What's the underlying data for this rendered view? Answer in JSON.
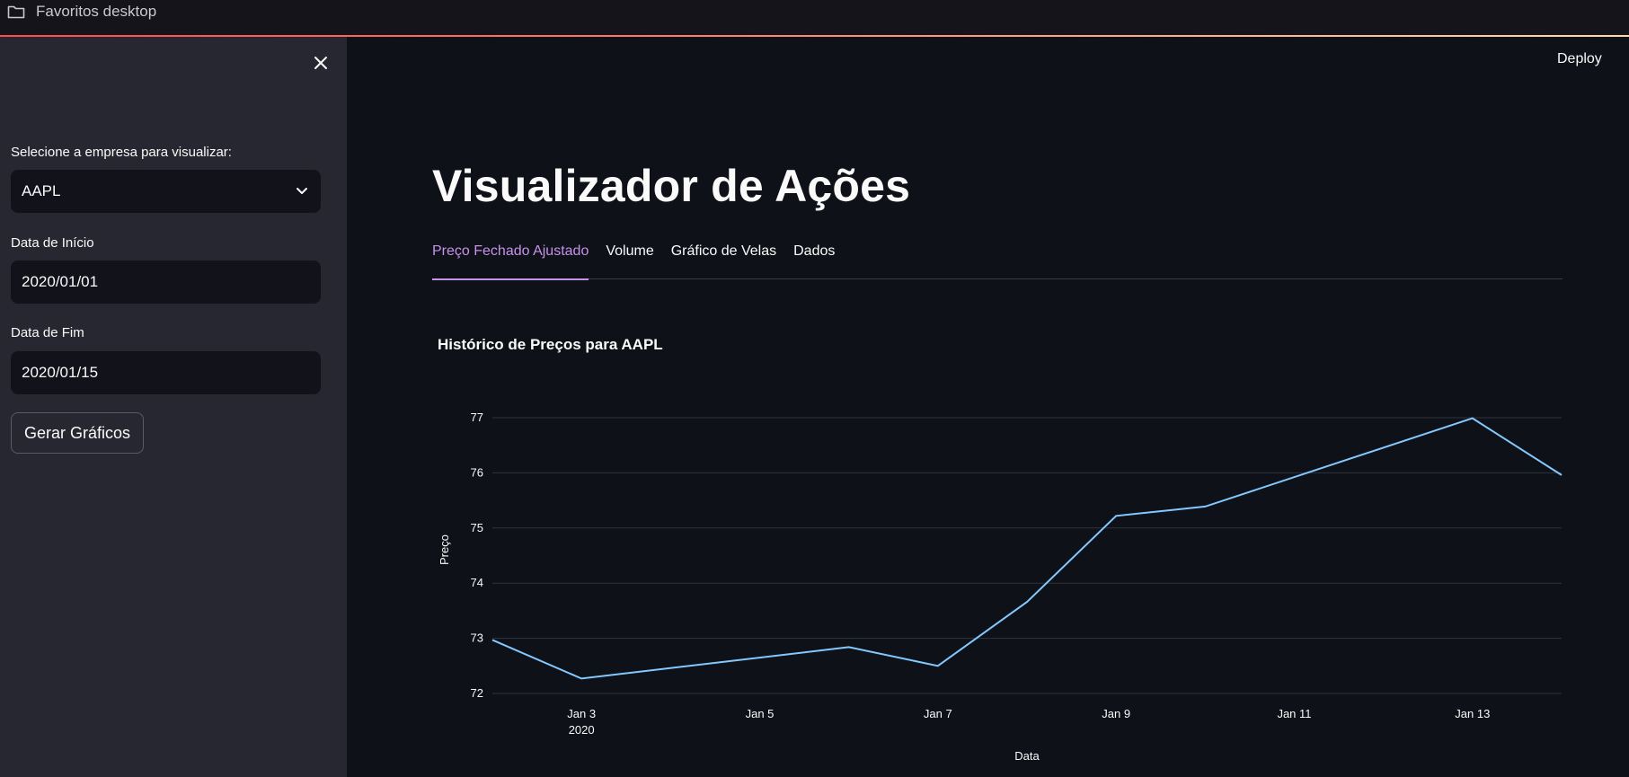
{
  "bookmarks": {
    "folder_label": "Favoritos desktop",
    "folder_icon": "folder-icon"
  },
  "sidebar": {
    "close_icon": "close-icon",
    "company_label": "Selecione a empresa para visualizar:",
    "company_value": "AAPL",
    "start_label": "Data de Início",
    "start_value": "2020/01/01",
    "end_label": "Data de Fim",
    "end_value": "2020/01/15",
    "generate_label": "Gerar Gráficos"
  },
  "header": {
    "deploy_label": "Deploy"
  },
  "main": {
    "title": "Visualizador de Ações",
    "tabs": [
      {
        "label": "Preço Fechado Ajustado",
        "active": true
      },
      {
        "label": "Volume",
        "active": false
      },
      {
        "label": "Gráfico de Velas",
        "active": false
      },
      {
        "label": "Dados",
        "active": false
      }
    ]
  },
  "colors": {
    "accent": "#c792ea",
    "line": "#83c9ff",
    "background": "#0e1117",
    "sidebar": "#262730"
  },
  "chart_data": {
    "type": "line",
    "title": "Histórico de Preços para AAPL",
    "xlabel": "Data",
    "ylabel": "Preço",
    "x": [
      "2020-01-02",
      "2020-01-03",
      "2020-01-06",
      "2020-01-07",
      "2020-01-08",
      "2020-01-09",
      "2020-01-10",
      "2020-01-13",
      "2020-01-14"
    ],
    "series": [
      {
        "values": [
          72.97,
          72.27,
          72.84,
          72.5,
          73.66,
          75.22,
          75.39,
          76.99,
          75.96
        ]
      }
    ],
    "xlim": [
      "2020-01-02",
      "2020-01-14"
    ],
    "ylim": [
      72,
      77
    ],
    "yticks": [
      72,
      73,
      74,
      75,
      76,
      77
    ],
    "xticks": [
      {
        "date": "2020-01-03",
        "label": "Jan 3",
        "sublabel": "2020"
      },
      {
        "date": "2020-01-05",
        "label": "Jan 5",
        "sublabel": ""
      },
      {
        "date": "2020-01-07",
        "label": "Jan 7",
        "sublabel": ""
      },
      {
        "date": "2020-01-09",
        "label": "Jan 9",
        "sublabel": ""
      },
      {
        "date": "2020-01-11",
        "label": "Jan 11",
        "sublabel": ""
      },
      {
        "date": "2020-01-13",
        "label": "Jan 13",
        "sublabel": ""
      }
    ],
    "grid": true,
    "legend": "none"
  }
}
